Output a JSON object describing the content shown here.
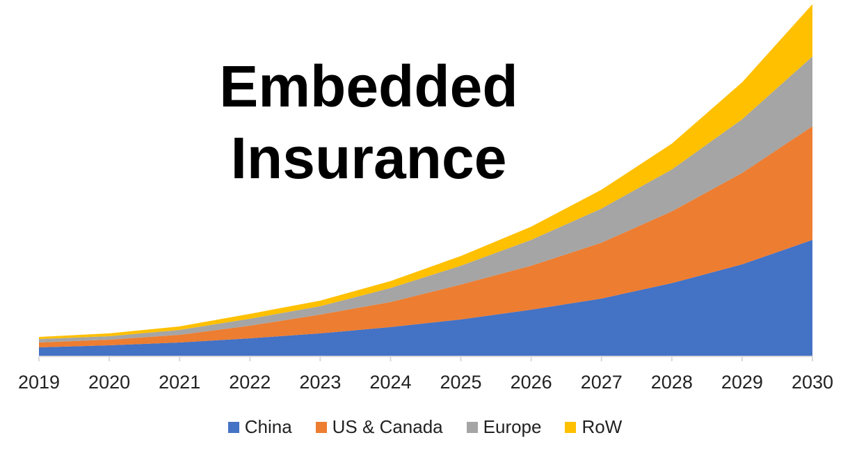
{
  "chart_data": {
    "type": "area",
    "stacked": true,
    "title": "Embedded Insurance",
    "title_lines": [
      "Embedded",
      "Insurance"
    ],
    "xlabel": "",
    "ylabel": "",
    "categories": [
      "2019",
      "2020",
      "2021",
      "2022",
      "2023",
      "2024",
      "2025",
      "2026",
      "2027",
      "2028",
      "2029",
      "2030"
    ],
    "ylim": [
      0,
      101
    ],
    "grid": false,
    "legend_position": "bottom",
    "series": [
      {
        "name": "China",
        "color": "#4472C4",
        "values": [
          2.4,
          3.0,
          3.8,
          5.0,
          6.4,
          8.2,
          10.4,
          13.2,
          16.4,
          20.8,
          26.2,
          33.2
        ]
      },
      {
        "name": "US & Canada",
        "color": "#ED7D31",
        "values": [
          1.4,
          1.6,
          2.2,
          3.6,
          5.4,
          7.2,
          10.0,
          12.6,
          16.0,
          20.6,
          26.2,
          32.6
        ]
      },
      {
        "name": "Europe",
        "color": "#A5A5A5",
        "values": [
          1.0,
          1.0,
          1.4,
          2.0,
          2.4,
          4.0,
          5.4,
          7.4,
          9.8,
          12.0,
          15.4,
          20.0
        ]
      },
      {
        "name": "RoW",
        "color": "#FFC000",
        "values": [
          0.6,
          0.8,
          1.0,
          1.4,
          1.6,
          2.0,
          2.8,
          3.8,
          5.4,
          7.4,
          10.6,
          15.0
        ]
      }
    ]
  }
}
